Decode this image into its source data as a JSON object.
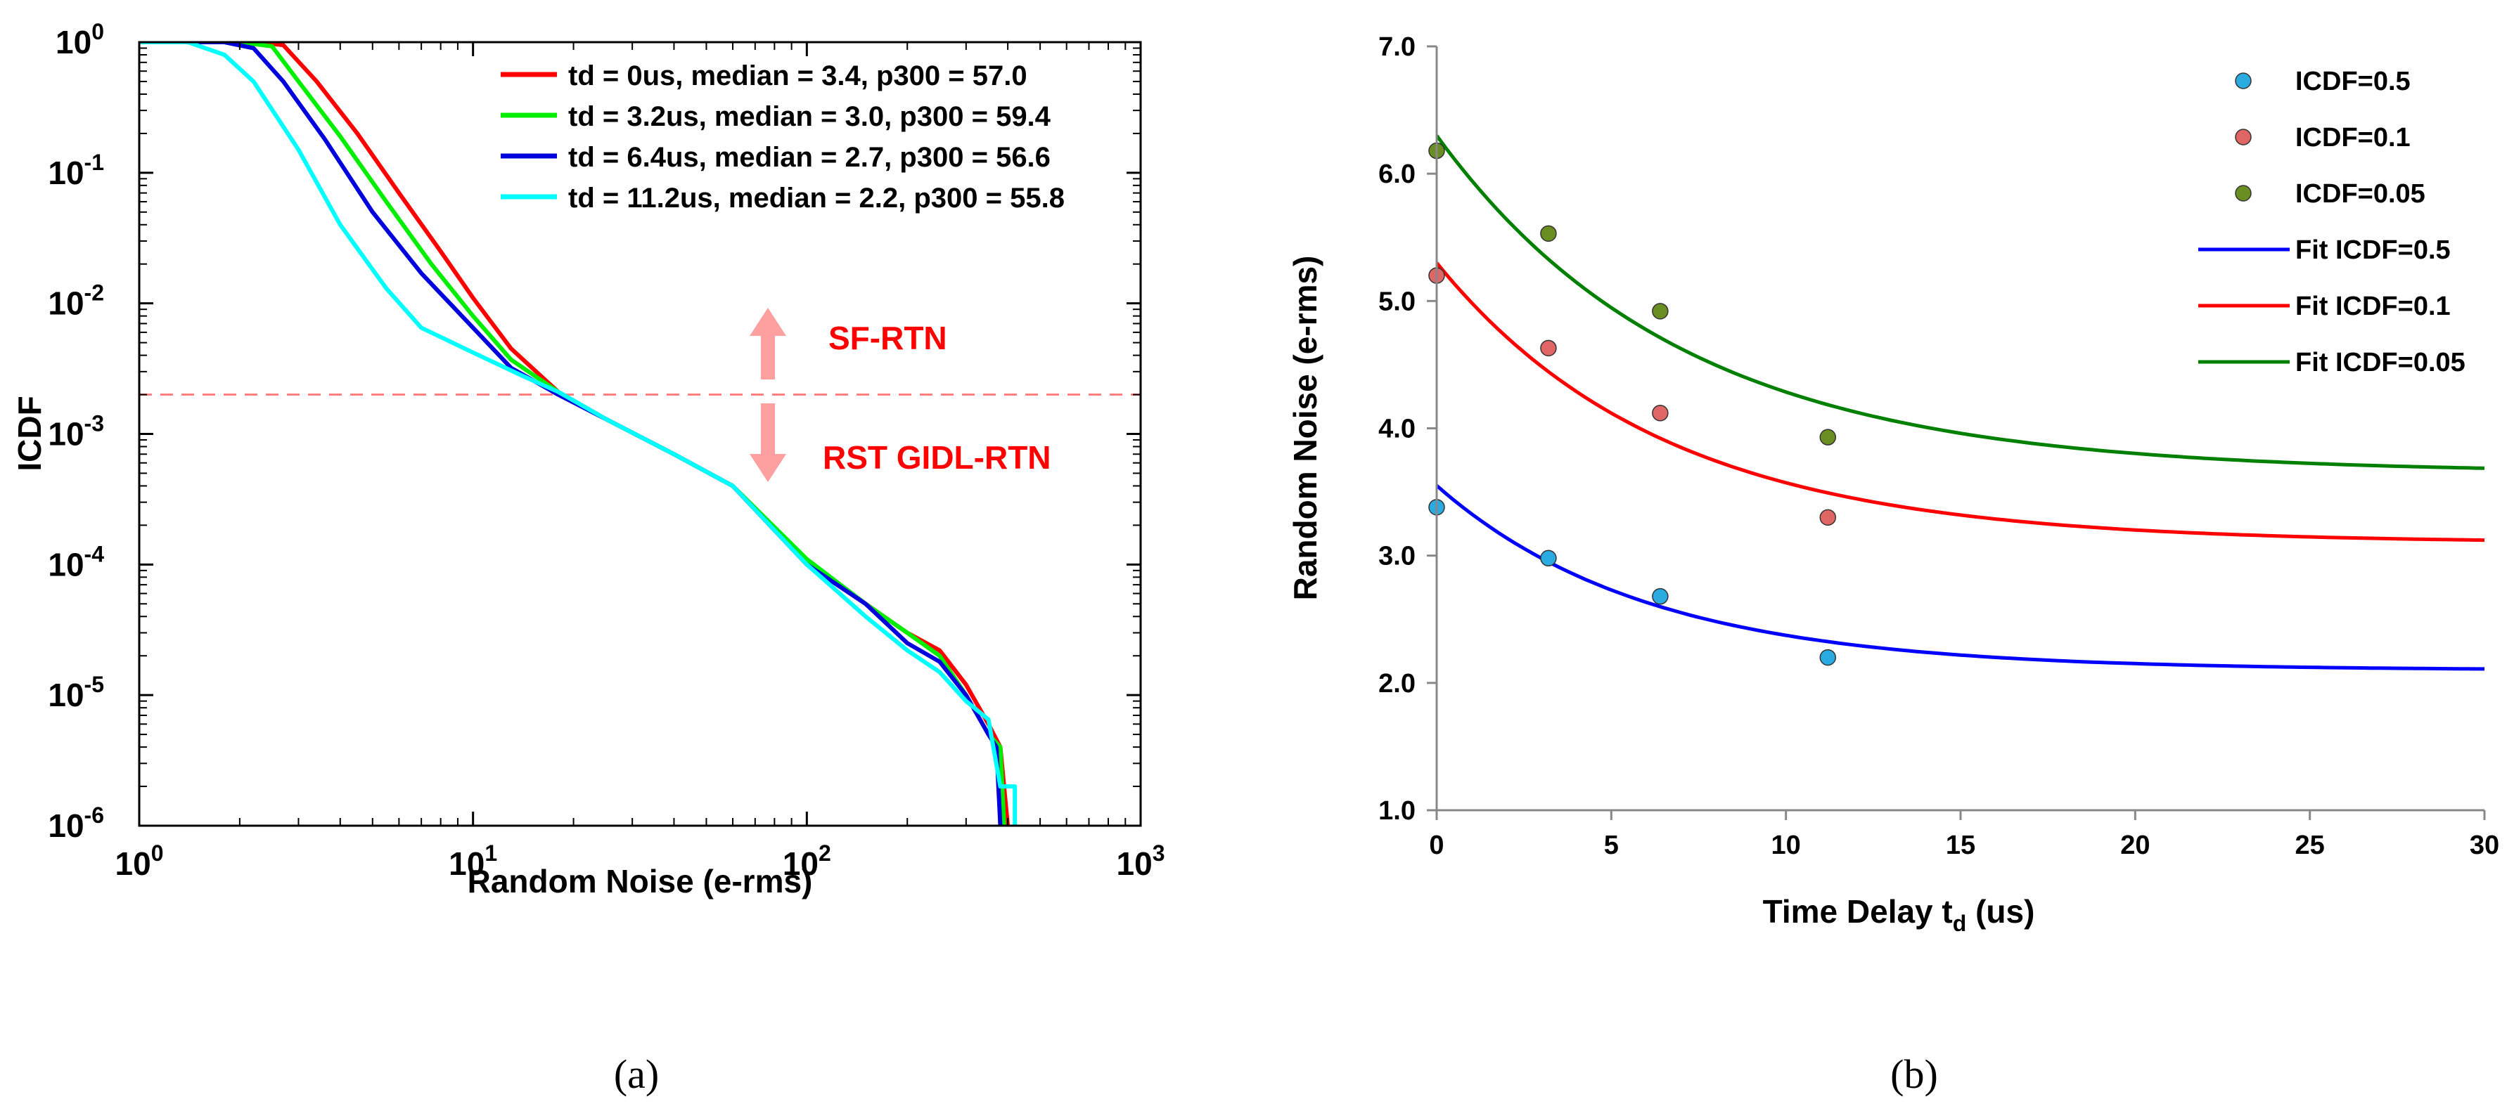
{
  "chart_data": [
    {
      "type": "line",
      "panel": "a",
      "panel_label": "(a)",
      "xlabel": "Random Noise (e-rms)",
      "ylabel": "ICDF",
      "xscale": "log",
      "yscale": "log",
      "xlim": [
        1,
        1000
      ],
      "ylim": [
        1e-06,
        1
      ],
      "x_ticks": [
        {
          "value": 1,
          "base": "10",
          "exp": "0"
        },
        {
          "value": 10,
          "base": "10",
          "exp": "1"
        },
        {
          "value": 100,
          "base": "10",
          "exp": "2"
        },
        {
          "value": 1000,
          "base": "10",
          "exp": "3"
        }
      ],
      "y_ticks": [
        {
          "value": 1,
          "base": "10",
          "exp": "0"
        },
        {
          "value": 0.1,
          "base": "10",
          "exp": "-1"
        },
        {
          "value": 0.01,
          "base": "10",
          "exp": "-2"
        },
        {
          "value": 0.001,
          "base": "10",
          "exp": "-3"
        },
        {
          "value": 0.0001,
          "base": "10",
          "exp": "-4"
        },
        {
          "value": 1e-05,
          "base": "10",
          "exp": "-5"
        },
        {
          "value": 1e-06,
          "base": "10",
          "exp": "-6"
        }
      ],
      "legend_position": "top-right",
      "series": [
        {
          "name": "td = 0us, median = 3.4, p300 = 57.0",
          "color": "#ff0000",
          "points": [
            [
              1,
              1
            ],
            [
              2.2,
              1
            ],
            [
              2.7,
              0.95
            ],
            [
              3.4,
              0.5
            ],
            [
              4.5,
              0.2
            ],
            [
              6,
              0.07
            ],
            [
              8,
              0.025
            ],
            [
              10,
              0.011
            ],
            [
              13,
              0.0045
            ],
            [
              18,
              0.0021
            ],
            [
              25,
              0.0013
            ],
            [
              40,
              0.0007
            ],
            [
              60,
              0.0004
            ],
            [
              100,
              0.0001
            ],
            [
              150,
              5e-05
            ],
            [
              200,
              3e-05
            ],
            [
              250,
              2.2e-05
            ],
            [
              300,
              1.2e-05
            ],
            [
              350,
              6e-06
            ],
            [
              380,
              4e-06
            ],
            [
              400,
              1e-06
            ]
          ]
        },
        {
          "name": "td = 3.2us, median = 3.0, p300 = 59.4",
          "color": "#00ee00",
          "points": [
            [
              1,
              1
            ],
            [
              2,
              1
            ],
            [
              2.5,
              0.93
            ],
            [
              3,
              0.5
            ],
            [
              4,
              0.19
            ],
            [
              5.5,
              0.06
            ],
            [
              7.5,
              0.02
            ],
            [
              10,
              0.008
            ],
            [
              13,
              0.0037
            ],
            [
              18,
              0.0021
            ],
            [
              25,
              0.0013
            ],
            [
              40,
              0.0007
            ],
            [
              60,
              0.0004
            ],
            [
              100,
              0.00011
            ],
            [
              150,
              5e-05
            ],
            [
              200,
              3e-05
            ],
            [
              250,
              2e-05
            ],
            [
              300,
              1e-05
            ],
            [
              350,
              5e-06
            ],
            [
              380,
              4e-06
            ],
            [
              390,
              1e-06
            ]
          ]
        },
        {
          "name": "td = 6.4us, median = 2.7, p300 = 56.6",
          "color": "#0000dd",
          "points": [
            [
              1,
              1
            ],
            [
              1.8,
              1
            ],
            [
              2.2,
              0.9
            ],
            [
              2.7,
              0.5
            ],
            [
              3.6,
              0.18
            ],
            [
              5,
              0.05
            ],
            [
              7,
              0.017
            ],
            [
              10,
              0.0065
            ],
            [
              13,
              0.0032
            ],
            [
              18,
              0.002
            ],
            [
              25,
              0.0013
            ],
            [
              40,
              0.0007
            ],
            [
              60,
              0.0004
            ],
            [
              100,
              0.0001
            ],
            [
              150,
              5e-05
            ],
            [
              200,
              2.5e-05
            ],
            [
              250,
              1.8e-05
            ],
            [
              300,
              1e-05
            ],
            [
              350,
              5e-06
            ],
            [
              370,
              4e-06
            ],
            [
              380,
              1e-06
            ]
          ]
        },
        {
          "name": "td = 11.2us, median = 2.2, p300 = 55.8",
          "color": "#00ffff",
          "points": [
            [
              1,
              1
            ],
            [
              1.4,
              1
            ],
            [
              1.8,
              0.8
            ],
            [
              2.2,
              0.5
            ],
            [
              3,
              0.15
            ],
            [
              4,
              0.04
            ],
            [
              5.5,
              0.013
            ],
            [
              7,
              0.0065
            ],
            [
              10,
              0.0042
            ],
            [
              14,
              0.0028
            ],
            [
              18,
              0.0021
            ],
            [
              25,
              0.0013
            ],
            [
              40,
              0.0007
            ],
            [
              60,
              0.0004
            ],
            [
              100,
              0.0001
            ],
            [
              150,
              4e-05
            ],
            [
              200,
              2.2e-05
            ],
            [
              250,
              1.5e-05
            ],
            [
              300,
              9e-06
            ],
            [
              350,
              6.5e-06
            ],
            [
              380,
              2e-06
            ],
            [
              420,
              2e-06
            ],
            [
              420,
              1e-06
            ]
          ]
        }
      ],
      "threshold_line": {
        "y": 0.002,
        "color": "#ff8080"
      },
      "annotations": [
        {
          "text": "SF-RTN",
          "color": "#ff0000",
          "arrow": "up"
        },
        {
          "text": "RST GIDL-RTN",
          "color": "#ff0000",
          "arrow": "down"
        }
      ]
    },
    {
      "type": "scatter",
      "panel": "b",
      "panel_label": "(b)",
      "xlabel_main": "Time Delay t",
      "xlabel_sub": "d",
      "xlabel_unit": " (us)",
      "ylabel": "Random Noise (e-rms)",
      "xlim": [
        0,
        30
      ],
      "ylim": [
        1.0,
        7.0
      ],
      "x_ticks": [
        "0",
        "5",
        "10",
        "15",
        "20",
        "25",
        "30"
      ],
      "y_ticks": [
        "1.0",
        "2.0",
        "3.0",
        "4.0",
        "5.0",
        "6.0",
        "7.0"
      ],
      "legend_position": "top-right",
      "series": [
        {
          "name": "ICDF=0.5",
          "marker": "circle",
          "color": "#29abe2",
          "x": [
            0,
            3.2,
            6.4,
            11.2
          ],
          "y": [
            3.38,
            2.98,
            2.68,
            2.2
          ]
        },
        {
          "name": "ICDF=0.1",
          "marker": "circle",
          "color": "#e06666",
          "x": [
            0,
            3.2,
            6.4,
            11.2
          ],
          "y": [
            5.2,
            4.63,
            4.12,
            3.3
          ]
        },
        {
          "name": "ICDF=0.05",
          "marker": "circle",
          "color": "#6b8e23",
          "x": [
            0,
            3.2,
            6.4,
            11.2
          ],
          "y": [
            6.18,
            5.53,
            4.92,
            3.93
          ]
        }
      ],
      "fits": [
        {
          "name": "Fit ICDF=0.5",
          "color": "#0000ff",
          "asymptote": 2.1,
          "start": 3.55,
          "tau": 6.0
        },
        {
          "name": "Fit ICDF=0.1",
          "color": "#ff0000",
          "asymptote": 3.1,
          "start": 5.3,
          "tau": 6.5
        },
        {
          "name": "Fit ICDF=0.05",
          "color": "#008000",
          "asymptote": 3.65,
          "start": 6.3,
          "tau": 7.0
        }
      ]
    }
  ]
}
